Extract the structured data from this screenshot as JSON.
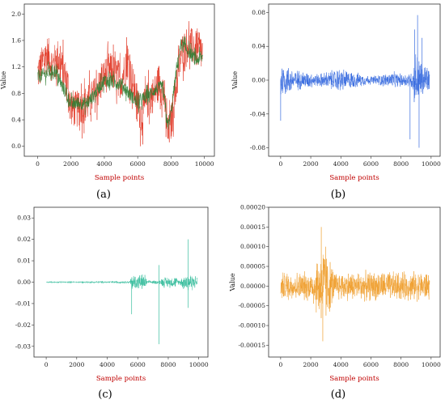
{
  "chart_data": [
    {
      "type": "line",
      "panel_label": "(a)",
      "xlabel": "Sample points",
      "ylabel": "Value",
      "xlim": [
        -800,
        10600
      ],
      "ylim": [
        -0.15,
        2.15
      ],
      "xticks": [
        0,
        2000,
        4000,
        6000,
        8000,
        10000
      ],
      "xtick_labels": [
        "0",
        "2000",
        "4000",
        "6000",
        "8000",
        "10000"
      ],
      "yticks": [
        0,
        0.4,
        0.8,
        1.2,
        1.6,
        2.0
      ],
      "ytick_labels": [
        "0.0",
        "0.4",
        "0.8",
        "1.2",
        "1.6",
        "2.0"
      ],
      "series": [
        {
          "color": "#e0301e",
          "x": [
            0,
            300,
            600,
            900,
            1200,
            1500,
            1800,
            2000,
            2300,
            2600,
            3000,
            3500,
            4000,
            4300,
            4600,
            5000,
            5400,
            5800,
            6200,
            6600,
            7000,
            7300,
            7600,
            7800,
            8000,
            8300,
            8600,
            9000,
            9300,
            9600,
            9900
          ],
          "y": [
            1.1,
            1.25,
            1.4,
            1.2,
            1.35,
            1.15,
            0.95,
            0.6,
            0.55,
            0.6,
            0.65,
            0.8,
            1.05,
            1.15,
            1.1,
            1.0,
            1.3,
            0.85,
            0.45,
            0.7,
            0.8,
            1.0,
            0.75,
            0.15,
            0.35,
            0.9,
            1.4,
            1.55,
            1.5,
            1.45,
            1.4
          ]
        },
        {
          "color": "#2e7d32",
          "x": [
            0,
            1000,
            2000,
            3000,
            4000,
            5000,
            6000,
            7000,
            7500,
            7800,
            8000,
            8300,
            8600,
            9000,
            9500,
            9900
          ],
          "y": [
            1.05,
            1.15,
            0.65,
            0.65,
            1.0,
            0.95,
            0.65,
            0.85,
            0.9,
            0.3,
            0.5,
            1.1,
            1.55,
            1.45,
            1.3,
            1.35
          ]
        }
      ]
    },
    {
      "type": "line",
      "panel_label": "(b)",
      "xlabel": "Sample points",
      "ylabel": "Value",
      "xlim": [
        -800,
        10600
      ],
      "ylim": [
        -0.09,
        0.09
      ],
      "xticks": [
        0,
        2000,
        4000,
        6000,
        8000,
        10000
      ],
      "xtick_labels": [
        "0",
        "2000",
        "4000",
        "6000",
        "8000",
        "10000"
      ],
      "yticks": [
        -0.08,
        -0.04,
        0.0,
        0.04,
        0.08
      ],
      "ytick_labels": [
        "-0.08",
        "-0.04",
        "0.00",
        "0.04",
        "0.08"
      ],
      "series": [
        {
          "color": "#3a6de0",
          "noise": {
            "x_start": 0,
            "x_end": 9900,
            "envelope_x": [
              0,
              500,
              1000,
              2500,
              4000,
              4500,
              6000,
              7500,
              8000,
              8700,
              9000,
              9300,
              9900
            ],
            "envelope_amp": [
              0.02,
              0.014,
              0.01,
              0.006,
              0.012,
              0.009,
              0.004,
              0.008,
              0.006,
              0.008,
              0.03,
              0.02,
              0.012
            ]
          },
          "spikes": [
            [
              0,
              -0.048
            ],
            [
              8600,
              -0.07
            ],
            [
              8900,
              0.06
            ],
            [
              9100,
              0.077
            ],
            [
              9200,
              -0.08
            ],
            [
              9400,
              0.05
            ]
          ]
        }
      ]
    },
    {
      "type": "line",
      "panel_label": "(c)",
      "xlabel": "Sample points",
      "ylabel": "",
      "xlim": [
        -800,
        10600
      ],
      "ylim": [
        -0.035,
        0.035
      ],
      "xticks": [
        0,
        2000,
        4000,
        6000,
        8000,
        10000
      ],
      "xtick_labels": [
        "0",
        "2000",
        "4000",
        "6000",
        "8000",
        "10000"
      ],
      "yticks": [
        -0.03,
        -0.02,
        -0.01,
        0.0,
        0.01,
        0.02,
        0.03
      ],
      "ytick_labels": [
        "-0.03",
        "-0.02",
        "-0.01",
        "0.00",
        "0.01",
        "0.02",
        "0.03"
      ],
      "series": [
        {
          "color": "#3bbf9f",
          "noise": {
            "x_start": 0,
            "x_end": 9900,
            "envelope_x": [
              0,
              5500,
              5600,
              6500,
              6600,
              7500,
              7600,
              8500,
              8700,
              9200,
              9600,
              9900
            ],
            "envelope_amp": [
              0.0003,
              0.0005,
              0.003,
              0.003,
              0.0006,
              0.0008,
              0.002,
              0.002,
              0.0008,
              0.004,
              0.003,
              0.002
            ]
          },
          "spikes": [
            [
              5600,
              -0.015
            ],
            [
              7400,
              -0.029
            ],
            [
              7400,
              0.008
            ],
            [
              9300,
              0.02
            ],
            [
              9300,
              -0.012
            ]
          ]
        }
      ]
    },
    {
      "type": "line",
      "panel_label": "(d)",
      "xlabel": "Sample points",
      "ylabel": "Value",
      "xlim": [
        -800,
        10600
      ],
      "ylim": [
        -0.00018,
        0.0002
      ],
      "xticks": [
        0,
        2000,
        4000,
        6000,
        8000,
        10000
      ],
      "xtick_labels": [
        "0",
        "2000",
        "4000",
        "6000",
        "8000",
        "10000"
      ],
      "yticks": [
        -0.00015,
        -0.0001,
        -5e-05,
        0,
        5e-05,
        0.0001,
        0.00015,
        0.0002
      ],
      "ytick_labels": [
        "-0.00015",
        "-0.00010",
        "-0.00005",
        "0.00000",
        "0.00005",
        "0.00010",
        "0.00015",
        "0.00020"
      ],
      "series": [
        {
          "color": "#f0a030",
          "noise": {
            "x_start": 0,
            "x_end": 9900,
            "envelope_x": [
              0,
              2000,
              2400,
              2800,
              3200,
              3600,
              6000,
              9900
            ],
            "envelope_amp": [
              3e-05,
              3e-05,
              6e-05,
              9e-05,
              6e-05,
              3e-05,
              3e-05,
              3e-05
            ]
          },
          "spikes": [
            [
              2700,
              0.00015
            ],
            [
              2800,
              -0.00014
            ],
            [
              3000,
              0.0001
            ]
          ]
        }
      ]
    }
  ]
}
